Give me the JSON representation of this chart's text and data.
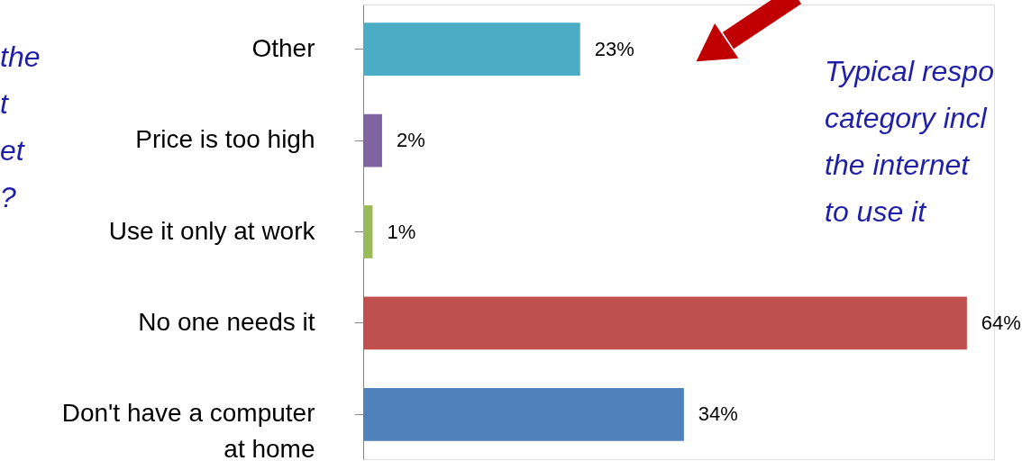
{
  "chart_data": {
    "type": "bar",
    "orientation": "horizontal",
    "categories": [
      "Other",
      "Price is too high",
      "Use it only at work",
      "No one needs it",
      "Don't have a computer at home"
    ],
    "values": [
      23,
      2,
      1,
      64,
      34
    ],
    "colors": [
      "#4bacc6",
      "#8064a2",
      "#9bbb59",
      "#c0504d",
      "#4f81bd"
    ],
    "value_labels": [
      "23%",
      "2%",
      "1%",
      "64%",
      "34%"
    ],
    "annotations": [
      "Typical respo\ncategory incl\nthe internet\nto use it",
      "the\nt\net\n\n?"
    ]
  }
}
